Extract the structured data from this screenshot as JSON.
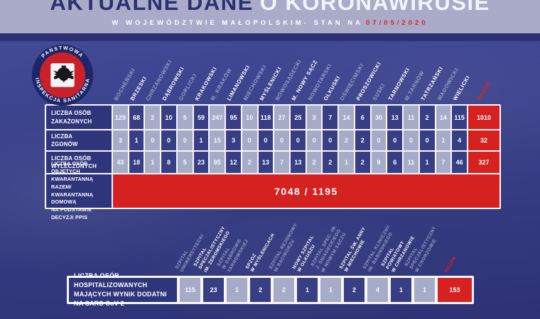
{
  "header": {
    "title_primary": "AKTUALNE DANE",
    "title_secondary": "O KORONAWIRUSIE",
    "subtitle": "W WOJEWÓDZTWIE MAŁOPOLSKIM- STAN NA",
    "date": "07/05/2020"
  },
  "logo": {
    "ring_text_top": "PAŃSTWOWA",
    "ring_text_bottom": "INSPEKCJA SANITARNA"
  },
  "districts_table": {
    "columns": [
      "BOCHEŃSKI",
      "BRZESKI",
      "CHRZANOWSKI",
      "DĄBROWSKI",
      "GORLICKI",
      "KRAKOWSKI",
      "M. KRAKÓW",
      "LIMANOWSKI",
      "MIECHOWSKI",
      "MYŚLENICKI",
      "NOWOSĄDECKI",
      "M. NOWY SĄCZ",
      "NOWOTARSKI",
      "OLKUSKI",
      "OŚWIĘCIMSKI",
      "PROSZOWICKI",
      "SUSKI",
      "TARNOWSKI",
      "M.TARNÓW",
      "TATRZAŃSKI",
      "WADOWICKI",
      "WIELICKI"
    ],
    "razem_label": "RAZEM",
    "rows": [
      {
        "label": "LICZBA OSÓB\nZAKAŻONYCH",
        "values": [
          129,
          68,
          2,
          10,
          5,
          59,
          247,
          95,
          10,
          118,
          27,
          25,
          3,
          7,
          14,
          6,
          30,
          13,
          11,
          2,
          14,
          115
        ],
        "total": 1010
      },
      {
        "label": "LICZBA\nZGONÓW",
        "values": [
          3,
          1,
          0,
          0,
          0,
          1,
          15,
          3,
          0,
          0,
          0,
          0,
          0,
          0,
          2,
          2,
          0,
          0,
          0,
          0,
          1,
          4
        ],
        "total": 32
      },
      {
        "label": "LICZBA OSÓB\nWYLECZONYCH",
        "values": [
          43,
          18,
          1,
          8,
          5,
          23,
          95,
          12,
          2,
          13,
          7,
          13,
          2,
          2,
          1,
          2,
          9,
          6,
          11,
          1,
          7,
          46
        ],
        "total": 327
      }
    ],
    "quarantine_row": {
      "label": "LICZBA OSÓB OBJĘTYCH\nKWARANTANNĄ RAZEM/\nKWARANTANNĄ DOMOWĄ\nNA PODSTAWIE DECYZJI PPIS",
      "value": "7048 / 1195"
    }
  },
  "hospitals_table": {
    "columns": [
      "SZPITAL\nUNIWERSYTECKI",
      "SZPITAL\nSPECJALISTYCZNY\nIM. ŻEROMSKIEGO",
      "SZPITAL\nW DĄBROWIE\nTARNOWSKIEJ",
      "SPZOZ\nW MYŚLENICACH",
      "SZPITAL REJONOWY\nW RACIBORZU",
      "NOWY SZPITAL\nW OLKUSZU",
      "SZPITAL SPEC. IM.\nJ. ŚNIADECKIEGO\nW NOWYM SĄCZU",
      "SZPITAL ŚW. ANNY\nW MIECHOWIE",
      "SZPITAL KLINICZNY\nIM. BABIŃSKIEGO",
      "SZPITAL\nPOWIATOWY\nW CHRZANOWIE",
      "SZPITAL\nSPECJALISTYCZNY\nW CHORZOWIE"
    ],
    "razem_label": "RAZEM",
    "row": {
      "label": "LICZBA OSÓB HOSPITALIZOWANYCH\nMAJĄCYCH WYNIK DODATNI NA SARS CoV-2",
      "values": [
        115,
        23,
        1,
        2,
        2,
        1,
        1,
        2,
        4,
        1,
        1
      ],
      "total": 153
    }
  },
  "colors": {
    "background_top": "#454c9a",
    "background_bottom": "#2c3274",
    "banner": "#a9abc8",
    "title_navy": "#2b306f",
    "divider_navy": "#2c3173",
    "cell_light": "#a6abc7",
    "cell_dark": "#373e83",
    "label_navy": "#2f357a",
    "accent_red": "#d62121"
  },
  "chart_data": [
    {
      "type": "table",
      "title": "AKTUALNE DANE O KORONAWIRUSIE — W WOJEWÓDZTWIE MAŁOPOLSKIM- STAN NA 07/05/2020",
      "categories": [
        "BOCHEŃSKI",
        "BRZESKI",
        "CHRZANOWSKI",
        "DĄBROWSKI",
        "GORLICKI",
        "KRAKOWSKI",
        "M. KRAKÓW",
        "LIMANOWSKI",
        "MIECHOWSKI",
        "MYŚLENICKI",
        "NOWOSĄDECKI",
        "M. NOWY SĄCZ",
        "NOWOTARSKI",
        "OLKUSKI",
        "OŚWIĘCIMSKI",
        "PROSZOWICKI",
        "SUSKI",
        "TARNOWSKI",
        "M.TARNÓW",
        "TATRZAŃSKI",
        "WADOWICKI",
        "WIELICKI",
        "RAZEM"
      ],
      "series": [
        {
          "name": "LICZBA OSÓB ZAKAŻONYCH",
          "values": [
            129,
            68,
            2,
            10,
            5,
            59,
            247,
            95,
            10,
            118,
            27,
            25,
            3,
            7,
            14,
            6,
            30,
            13,
            11,
            2,
            14,
            115,
            1010
          ]
        },
        {
          "name": "LICZBA ZGONÓW",
          "values": [
            3,
            1,
            0,
            0,
            0,
            1,
            15,
            3,
            0,
            0,
            0,
            0,
            0,
            0,
            2,
            2,
            0,
            0,
            0,
            0,
            1,
            4,
            32
          ]
        },
        {
          "name": "LICZBA OSÓB WYLECZONYCH",
          "values": [
            43,
            18,
            1,
            8,
            5,
            23,
            95,
            12,
            2,
            13,
            7,
            13,
            2,
            2,
            1,
            2,
            9,
            6,
            11,
            1,
            7,
            46,
            327
          ]
        }
      ],
      "annotations": [
        {
          "label": "LICZBA OSÓB OBJĘTYCH KWARANTANNĄ RAZEM/ KWARANTANNĄ DOMOWĄ NA PODSTAWIE DECYZJI PPIS",
          "value": "7048 / 1195"
        }
      ]
    },
    {
      "type": "table",
      "title": "LICZBA OSÓB HOSPITALIZOWANYCH MAJĄCYCH WYNIK DODATNI NA SARS CoV-2",
      "categories": [
        "SZPITAL UNIWERSYTECKI",
        "SZPITAL SPECJALISTYCZNY IM. ŻEROMSKIEGO",
        "SZPITAL W DĄBROWIE TARNOWSKIEJ",
        "SPZOZ W MYŚLENICACH",
        "SZPITAL REJONOWY W RACIBORZU",
        "NOWY SZPITAL W OLKUSZU",
        "SZPITAL SPEC. IM. J. ŚNIADECKIEGO W NOWYM SĄCZU",
        "SZPITAL ŚW. ANNY W MIECHOWIE",
        "SZPITAL KLINICZNY IM. BABIŃSKIEGO",
        "SZPITAL POWIATOWY W CHRZANOWIE",
        "SZPITAL SPECJALISTYCZNY W CHORZOWIE",
        "RAZEM"
      ],
      "values": [
        115,
        23,
        1,
        2,
        2,
        1,
        1,
        2,
        4,
        1,
        1,
        153
      ]
    }
  ]
}
